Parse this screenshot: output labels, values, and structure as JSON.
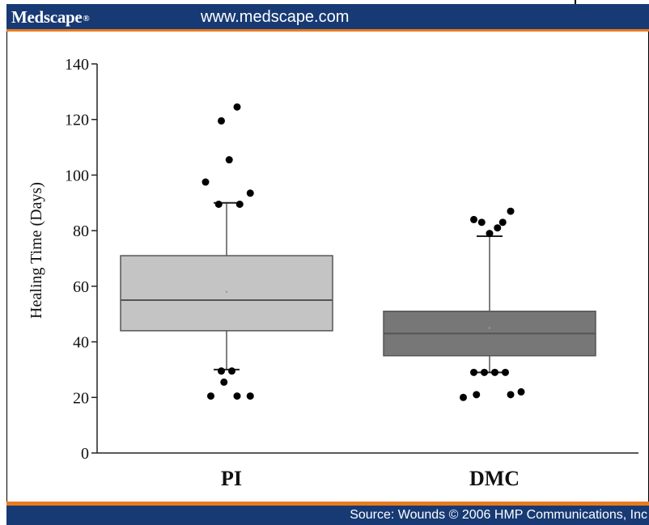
{
  "header": {
    "brand": "Medscape",
    "brand_mark": "®",
    "url": "www.medscape.com"
  },
  "footer": {
    "source": "Source: Wounds © 2006 HMP Communications, Inc"
  },
  "colors": {
    "header_bg": "#173a74",
    "accent": "#e97b1f",
    "pi_box": "#c4c4c4",
    "dmc_box": "#777777"
  },
  "chart_data": {
    "type": "box",
    "title": "",
    "xlabel": "",
    "ylabel": "Healing Time (Days)",
    "ylim": [
      0,
      140
    ],
    "yticks": [
      0,
      20,
      40,
      60,
      80,
      100,
      120,
      140
    ],
    "grid": false,
    "categories": [
      "PI",
      "DMC"
    ],
    "series": [
      {
        "category": "PI",
        "whisker_low": 30,
        "q1": 44,
        "median": 55,
        "mean": 58,
        "q3": 71,
        "whisker_high": 90,
        "outliers": [
          [
            -0.06,
            20.5
          ],
          [
            0.04,
            20.5
          ],
          [
            0.09,
            20.5
          ],
          [
            -0.01,
            25.5
          ],
          [
            -0.02,
            29.5
          ],
          [
            0.02,
            29.5
          ],
          [
            -0.03,
            89.5
          ],
          [
            0.05,
            89.5
          ],
          [
            0.09,
            93.5
          ],
          [
            -0.08,
            97.5
          ],
          [
            0.01,
            105.5
          ],
          [
            -0.02,
            119.5
          ],
          [
            0.04,
            124.5
          ]
        ]
      },
      {
        "category": "DMC",
        "whisker_low": 29,
        "q1": 35,
        "median": 43,
        "mean": 45,
        "q3": 51,
        "whisker_high": 78,
        "outliers": [
          [
            -0.1,
            20
          ],
          [
            -0.05,
            21
          ],
          [
            0.08,
            21
          ],
          [
            0.12,
            22
          ],
          [
            -0.06,
            29
          ],
          [
            -0.02,
            29
          ],
          [
            0.02,
            29
          ],
          [
            0.06,
            29
          ],
          [
            0.0,
            79
          ],
          [
            0.03,
            81
          ],
          [
            -0.03,
            83
          ],
          [
            -0.06,
            84
          ],
          [
            0.05,
            83
          ],
          [
            0.08,
            87
          ]
        ]
      }
    ]
  }
}
